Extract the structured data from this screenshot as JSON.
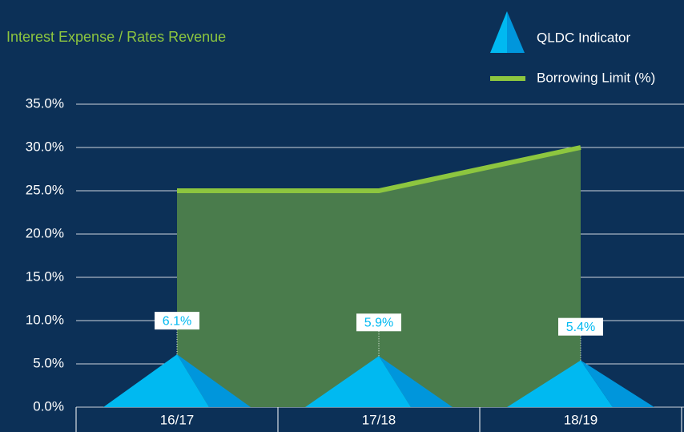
{
  "chart_data": {
    "type": "combo",
    "title": "Interest Expense / Rates Revenue",
    "categories": [
      "16/17",
      "17/18",
      "18/19"
    ],
    "series": [
      {
        "name": "QLDC Indicator",
        "type": "triangle",
        "color": "#00b9f1",
        "values": [
          6.1,
          5.9,
          5.4
        ],
        "value_labels": [
          "6.1%",
          "5.9%",
          "5.4%"
        ]
      },
      {
        "name": "Borrowing Limit (%)",
        "type": "line",
        "color": "#8dc63f",
        "values": [
          25,
          25,
          30
        ]
      }
    ],
    "ylim": [
      0,
      35
    ],
    "yticks": [
      {
        "value": 0,
        "label": "0.0%"
      },
      {
        "value": 5,
        "label": "5.0%"
      },
      {
        "value": 10,
        "label": "10.0%"
      },
      {
        "value": 15,
        "label": "15.0%"
      },
      {
        "value": 20,
        "label": "20.0%"
      },
      {
        "value": 25,
        "label": "25.0%"
      },
      {
        "value": 30,
        "label": "30.0%"
      },
      {
        "value": 35,
        "label": "35.0%"
      }
    ],
    "grid": true,
    "legend": "top-right"
  }
}
